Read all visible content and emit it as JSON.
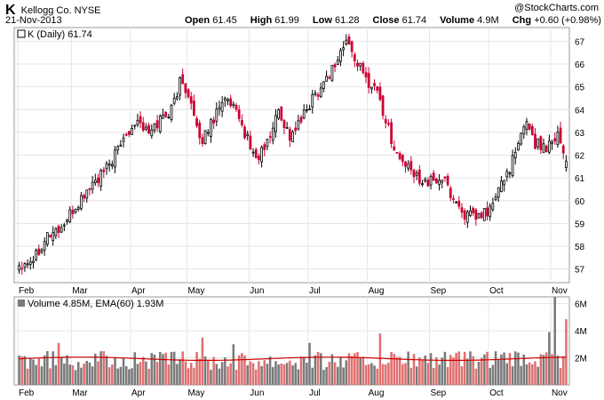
{
  "header": {
    "ticker": "K",
    "name": "Kellogg Co.",
    "exchange": "NYSE",
    "date": "21-Nov-2013",
    "watermark": "@StockCharts.com",
    "open_label": "Open",
    "open": "61.45",
    "high_label": "High",
    "high": "61.99",
    "low_label": "Low",
    "low": "61.28",
    "close_label": "Close",
    "close": "61.74",
    "volume_label": "Volume",
    "volume": "4.9M",
    "chg_label": "Chg",
    "chg": "+0.60 (+0.98%)"
  },
  "colors": {
    "up": "#000000",
    "down": "#cc0033",
    "vol_up": "#7a7a7a",
    "vol_down": "#e07070",
    "ema": "#cc0000"
  },
  "chart_data": [
    {
      "type": "candlestick",
      "legend": "K (Daily) 61.74",
      "ylim": [
        56.4,
        67.6
      ],
      "yticks": [
        57,
        58,
        59,
        60,
        61,
        62,
        63,
        64,
        65,
        66,
        67
      ],
      "months": [
        "Feb",
        "Mar",
        "Apr",
        "May",
        "Jun",
        "Jul",
        "Aug",
        "Sep",
        "Oct",
        "Nov"
      ],
      "month_start_index": [
        0,
        19,
        40,
        60,
        82,
        103,
        124,
        146,
        167,
        189
      ],
      "anchors": [
        [
          0,
          57.2
        ],
        [
          5,
          57.5
        ],
        [
          10,
          58.5
        ],
        [
          15,
          58.8
        ],
        [
          20,
          59.7
        ],
        [
          25,
          60.6
        ],
        [
          30,
          61.2
        ],
        [
          35,
          62.2
        ],
        [
          38,
          63.0
        ],
        [
          42,
          63.6
        ],
        [
          46,
          62.9
        ],
        [
          50,
          63.6
        ],
        [
          54,
          64.0
        ],
        [
          57,
          65.2
        ],
        [
          60,
          64.8
        ],
        [
          64,
          62.5
        ],
        [
          68,
          63.4
        ],
        [
          72,
          64.5
        ],
        [
          76,
          64.0
        ],
        [
          80,
          63.0
        ],
        [
          84,
          61.8
        ],
        [
          88,
          62.5
        ],
        [
          92,
          64.0
        ],
        [
          96,
          62.8
        ],
        [
          100,
          63.5
        ],
        [
          104,
          64.5
        ],
        [
          108,
          65.2
        ],
        [
          112,
          66.0
        ],
        [
          116,
          67.0
        ],
        [
          119,
          66.3
        ],
        [
          123,
          65.3
        ],
        [
          127,
          64.9
        ],
        [
          129,
          63.9
        ],
        [
          134,
          62.0
        ],
        [
          140,
          61.1
        ],
        [
          146,
          60.8
        ],
        [
          150,
          61.0
        ],
        [
          154,
          60.1
        ],
        [
          158,
          59.4
        ],
        [
          162,
          59.2
        ],
        [
          167,
          59.6
        ],
        [
          172,
          61.0
        ],
        [
          176,
          62.0
        ],
        [
          180,
          63.6
        ],
        [
          183,
          62.5
        ],
        [
          187,
          62.4
        ],
        [
          191,
          63.0
        ],
        [
          194,
          61.7
        ]
      ],
      "last": {
        "open": 61.45,
        "high": 61.99,
        "low": 61.28,
        "close": 61.74
      }
    },
    {
      "type": "volume",
      "legend": "Volume 4.85M, EMA(60) 1.93M",
      "ylim": [
        0,
        6.5
      ],
      "yticks": [
        2,
        4,
        6
      ],
      "ytick_labels": [
        "2M",
        "4M",
        "6M"
      ],
      "ema_level": 1.93,
      "spikes": [
        [
          14,
          3.1
        ],
        [
          65,
          3.5
        ],
        [
          76,
          3.0
        ],
        [
          103,
          3.1
        ],
        [
          128,
          3.8
        ],
        [
          188,
          3.9
        ],
        [
          190,
          6.6
        ],
        [
          194,
          4.85
        ]
      ]
    }
  ]
}
